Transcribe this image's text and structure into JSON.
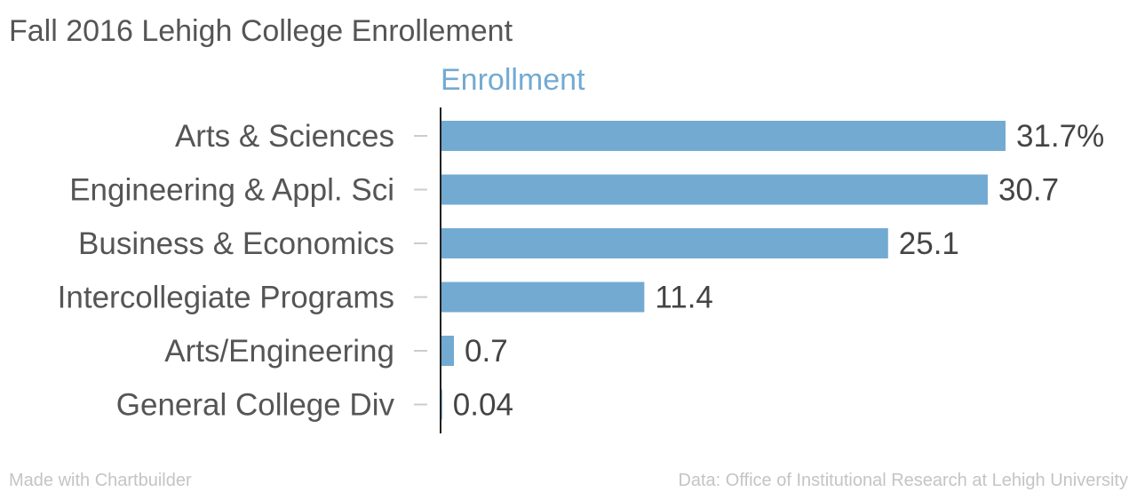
{
  "chart_data": {
    "type": "bar",
    "orientation": "horizontal",
    "title": "Fall 2016 Lehigh College Enrollement",
    "series": [
      {
        "name": "Enrollment",
        "color": "#73aad2",
        "values": [
          31.7,
          30.7,
          25.1,
          11.4,
          0.7,
          0.04
        ],
        "value_labels": [
          "31.7%",
          "30.7",
          "25.1",
          "11.4",
          "0.7",
          "0.04"
        ]
      }
    ],
    "categories": [
      "Arts & Sciences",
      "Engineering & Appl. Sci",
      "Business & Economics",
      "Intercollegiate Programs",
      "Arts/Engineering",
      "General College Div"
    ],
    "xlim": [
      0,
      31.7
    ],
    "grid": false,
    "legend": "top"
  },
  "footer": {
    "credit": "Made with Chartbuilder",
    "source": "Data: Office of Institutional Research at Lehigh University"
  },
  "colors": {
    "bar": "#73aad2",
    "title": "#555555",
    "labels": "#555555",
    "values": "#444444",
    "footer": "#c4c4c4",
    "axis": "#222222",
    "tick": "#cccccc"
  }
}
